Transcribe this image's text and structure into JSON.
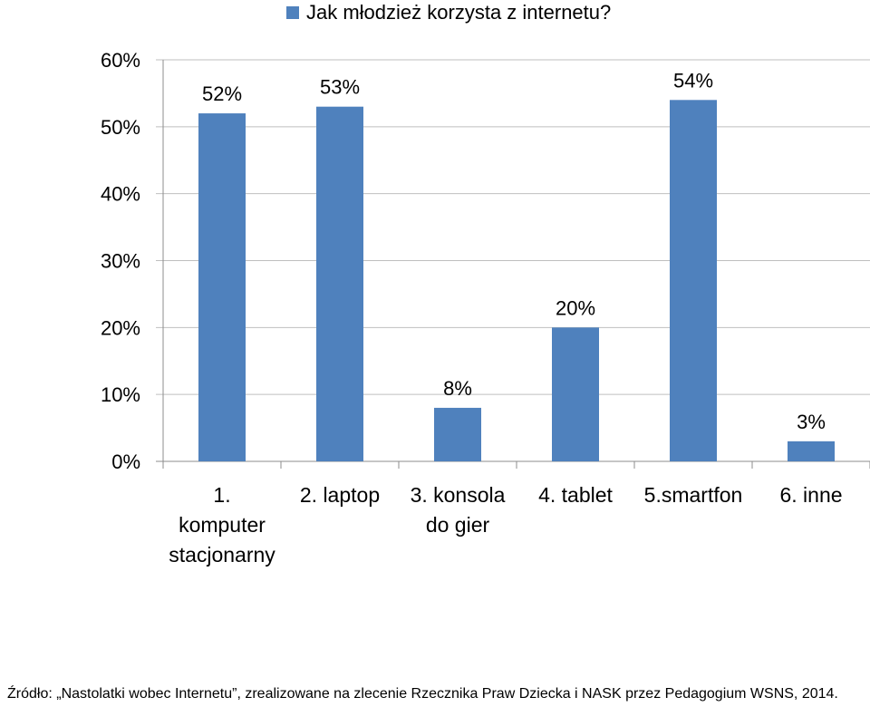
{
  "chart_data": {
    "type": "bar",
    "title": "",
    "xlabel": "",
    "ylabel": "",
    "categories": [
      "1.\nkomputer\nstacjonarny",
      "2. laptop",
      "3. konsola\ndo gier",
      "4. tablet",
      "5.smartfon",
      "6. inne"
    ],
    "series": [
      {
        "name": "Jak młodzież korzysta z internetu?",
        "values": [
          0.52,
          0.53,
          0.08,
          0.2,
          0.54,
          0.03
        ],
        "data_labels": [
          "52%",
          "53%",
          "8%",
          "20%",
          "54%",
          "3%"
        ]
      }
    ],
    "ylim": [
      0,
      0.6
    ],
    "yticks": [
      0,
      0.1,
      0.2,
      0.3,
      0.4,
      0.5,
      0.6
    ],
    "ytick_labels": [
      "0%",
      "10%",
      "20%",
      "30%",
      "40%",
      "50%",
      "60%"
    ],
    "grid": true,
    "legend": "top",
    "colors": {
      "bar": "#4f81bd",
      "grid": "#bfbfbf",
      "axis": "#8c8c8c"
    }
  },
  "source_note": "Źródło: „Nastolatki wobec Internetu”, zrealizowane na zlecenie Rzecznika Praw Dziecka i NASK przez Pedagogium WSNS, 2014."
}
